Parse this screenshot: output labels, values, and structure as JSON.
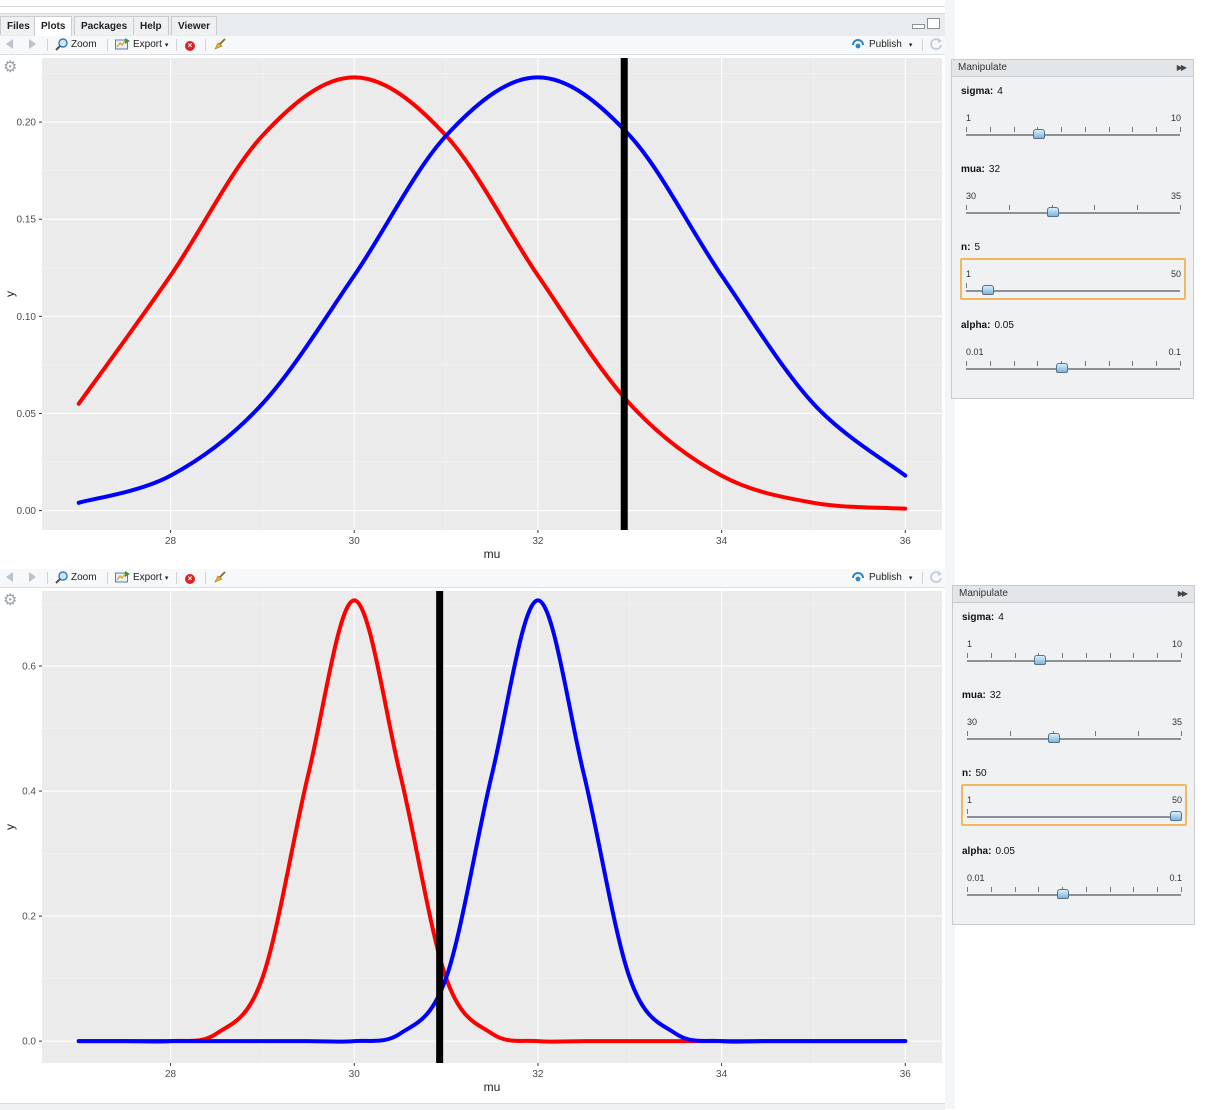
{
  "tabs": [
    {
      "label": "Files",
      "active": false
    },
    {
      "label": "Plots",
      "active": true
    },
    {
      "label": "Packages",
      "active": false
    },
    {
      "label": "Help",
      "active": false
    },
    {
      "label": "Viewer",
      "active": false
    }
  ],
  "toolbar": {
    "zoom_label": "Zoom",
    "export_label": "Export",
    "publish_label": "Publish",
    "caret": "▾"
  },
  "manipulate_title": "Manipulate",
  "panels": [
    {
      "controls": [
        {
          "label": "sigma:",
          "value": "4",
          "min": "1",
          "max": "10",
          "fraction": 0.333
        },
        {
          "label": "mua:",
          "value": "32",
          "min": "30",
          "max": "35",
          "fraction": 0.4
        },
        {
          "label": "n:",
          "value": "5",
          "min": "1",
          "max": "50",
          "fraction": 0.082
        },
        {
          "label": "alpha:",
          "value": "0.05",
          "min": "0.01",
          "max": "0.1",
          "fraction": 0.444
        }
      ]
    },
    {
      "controls": [
        {
          "label": "sigma:",
          "value": "4",
          "min": "1",
          "max": "10",
          "fraction": 0.333
        },
        {
          "label": "mua:",
          "value": "32",
          "min": "30",
          "max": "35",
          "fraction": 0.4
        },
        {
          "label": "n:",
          "value": "50",
          "min": "1",
          "max": "50",
          "fraction": 1.0
        },
        {
          "label": "alpha:",
          "value": "0.05",
          "min": "0.01",
          "max": "0.1",
          "fraction": 0.444
        }
      ]
    }
  ],
  "chart_data": [
    {
      "type": "line",
      "xlabel": "mu",
      "ylabel": "y",
      "xlim": [
        26.6,
        36.4
      ],
      "ylim": [
        -0.01,
        0.233
      ],
      "xticks": [
        "28",
        "30",
        "32",
        "34",
        "36"
      ],
      "yticks": [
        "0.00",
        "0.05",
        "0.10",
        "0.15",
        "0.20"
      ],
      "grid": true,
      "series": [
        {
          "color": "#ff0000",
          "x": [
            27,
            28,
            29,
            30,
            31,
            32,
            33,
            34,
            35,
            36
          ],
          "y": [
            0.055,
            0.121,
            0.193,
            0.223,
            0.193,
            0.121,
            0.055,
            0.018,
            0.004,
            0.001
          ]
        },
        {
          "color": "#0000ff",
          "x": [
            27,
            28,
            29,
            30,
            31,
            32,
            33,
            34,
            35,
            36
          ],
          "y": [
            0.004,
            0.018,
            0.055,
            0.121,
            0.193,
            0.223,
            0.193,
            0.121,
            0.055,
            0.018
          ]
        }
      ],
      "vline": {
        "x": 32.94,
        "color": "#000000"
      }
    },
    {
      "type": "line",
      "xlabel": "mu",
      "ylabel": "y",
      "xlim": [
        26.6,
        36.4
      ],
      "ylim": [
        -0.035,
        0.72
      ],
      "xticks": [
        "28",
        "30",
        "32",
        "34",
        "36"
      ],
      "yticks": [
        "0.0",
        "0.2",
        "0.4",
        "0.6"
      ],
      "grid": true,
      "series": [
        {
          "color": "#ff0000",
          "x": [
            27,
            27.5,
            28,
            28.5,
            29,
            29.5,
            30,
            30.5,
            31,
            31.5,
            32,
            32.5,
            33,
            33.5,
            34,
            35,
            36
          ],
          "y": [
            0.0,
            0.0,
            0.0,
            0.012,
            0.101,
            0.427,
            0.705,
            0.427,
            0.101,
            0.012,
            0.0,
            0.0,
            0.0,
            0.0,
            0.0,
            0.0,
            0.0
          ]
        },
        {
          "color": "#0000ff",
          "x": [
            27,
            28,
            29,
            29.5,
            30,
            30.5,
            31,
            31.5,
            32,
            32.5,
            33,
            33.5,
            34,
            34.5,
            35,
            36
          ],
          "y": [
            0.0,
            0.0,
            0.0,
            0.0,
            0.0,
            0.012,
            0.101,
            0.427,
            0.705,
            0.427,
            0.101,
            0.012,
            0.0,
            0.0,
            0.0,
            0.0
          ]
        }
      ],
      "vline": {
        "x": 30.93,
        "color": "#000000"
      }
    }
  ]
}
